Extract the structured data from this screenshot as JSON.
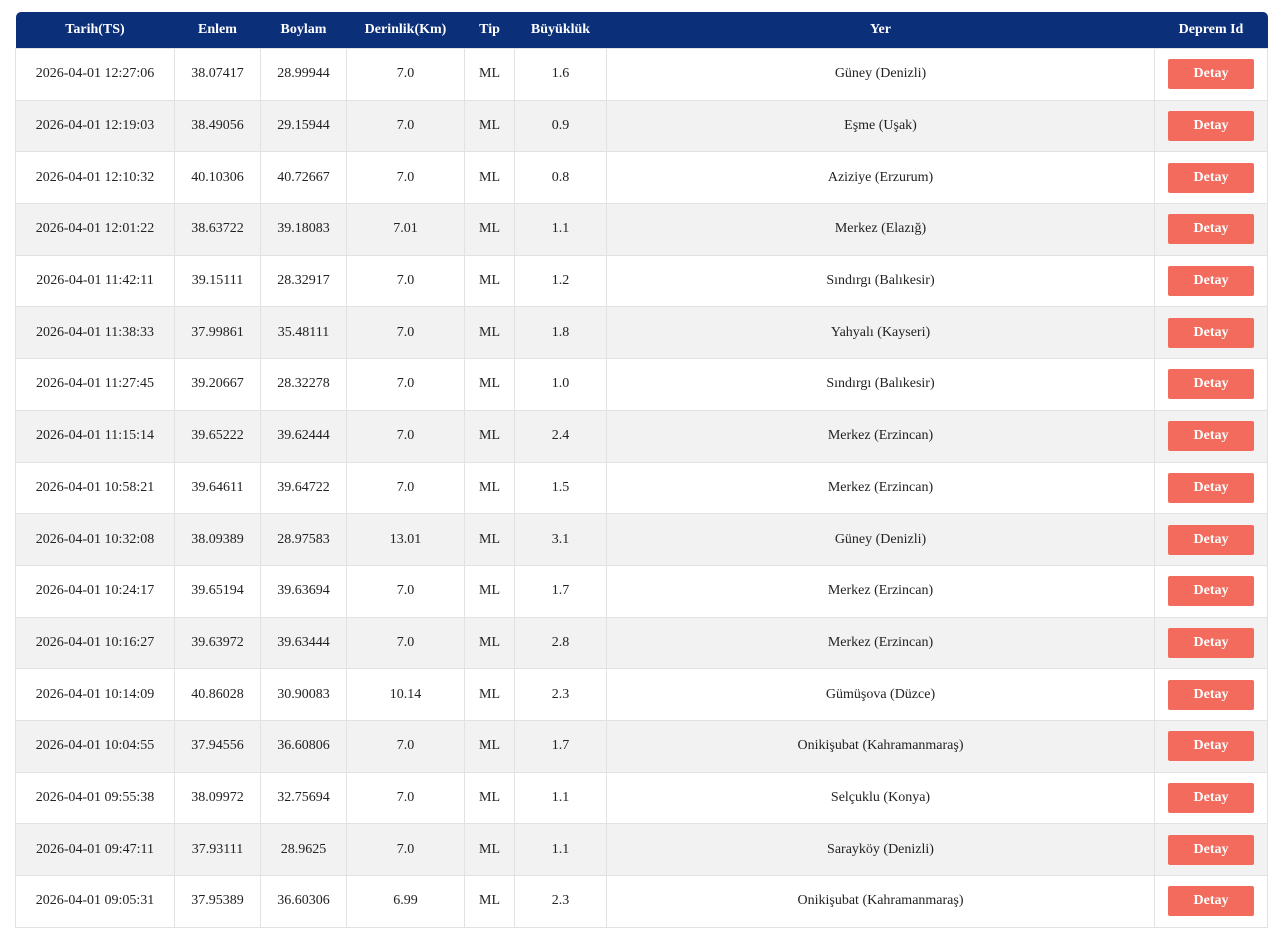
{
  "table": {
    "headers": [
      "Tarih(TS)",
      "Enlem",
      "Boylam",
      "Derinlik(Km)",
      "Tip",
      "Büyüklük",
      "Yer",
      "Deprem Id"
    ],
    "rows": [
      [
        "2026-04-01 12:27:06",
        "38.07417",
        "28.99944",
        "7.0",
        "ML",
        "1.6",
        "Güney (Denizli)",
        "Detay"
      ],
      [
        "2026-04-01 12:19:03",
        "38.49056",
        "29.15944",
        "7.0",
        "ML",
        "0.9",
        "Eşme (Uşak)",
        "Detay"
      ],
      [
        "2026-04-01 12:10:32",
        "40.10306",
        "40.72667",
        "7.0",
        "ML",
        "0.8",
        "Aziziye (Erzurum)",
        "Detay"
      ],
      [
        "2026-04-01 12:01:22",
        "38.63722",
        "39.18083",
        "7.01",
        "ML",
        "1.1",
        "Merkez (Elazığ)",
        "Detay"
      ],
      [
        "2026-04-01 11:42:11",
        "39.15111",
        "28.32917",
        "7.0",
        "ML",
        "1.2",
        "Sındırgı (Balıkesir)",
        "Detay"
      ],
      [
        "2026-04-01 11:38:33",
        "37.99861",
        "35.48111",
        "7.0",
        "ML",
        "1.8",
        "Yahyalı (Kayseri)",
        "Detay"
      ],
      [
        "2026-04-01 11:27:45",
        "39.20667",
        "28.32278",
        "7.0",
        "ML",
        "1.0",
        "Sındırgı (Balıkesir)",
        "Detay"
      ],
      [
        "2026-04-01 11:15:14",
        "39.65222",
        "39.62444",
        "7.0",
        "ML",
        "2.4",
        "Merkez (Erzincan)",
        "Detay"
      ],
      [
        "2026-04-01 10:58:21",
        "39.64611",
        "39.64722",
        "7.0",
        "ML",
        "1.5",
        "Merkez (Erzincan)",
        "Detay"
      ],
      [
        "2026-04-01 10:32:08",
        "38.09389",
        "28.97583",
        "13.01",
        "ML",
        "3.1",
        "Güney (Denizli)",
        "Detay"
      ],
      [
        "2026-04-01 10:24:17",
        "39.65194",
        "39.63694",
        "7.0",
        "ML",
        "1.7",
        "Merkez (Erzincan)",
        "Detay"
      ],
      [
        "2026-04-01 10:16:27",
        "39.63972",
        "39.63444",
        "7.0",
        "ML",
        "2.8",
        "Merkez (Erzincan)",
        "Detay"
      ],
      [
        "2026-04-01 10:14:09",
        "40.86028",
        "30.90083",
        "10.14",
        "ML",
        "2.3",
        "Gümüşova (Düzce)",
        "Detay"
      ],
      [
        "2026-04-01 10:04:55",
        "37.94556",
        "36.60806",
        "7.0",
        "ML",
        "1.7",
        "Onikişubat (Kahramanmaraş)",
        "Detay"
      ],
      [
        "2026-04-01 09:55:38",
        "38.09972",
        "32.75694",
        "7.0",
        "ML",
        "1.1",
        "Selçuklu (Konya)",
        "Detay"
      ],
      [
        "2026-04-01 09:47:11",
        "37.93111",
        "28.9625",
        "7.0",
        "ML",
        "1.1",
        "Sarayköy (Denizli)",
        "Detay"
      ],
      [
        "2026-04-01 09:05:31",
        "37.95389",
        "36.60306",
        "6.99",
        "ML",
        "2.3",
        "Onikişubat (Kahramanmaraş)",
        "Detay"
      ]
    ]
  }
}
